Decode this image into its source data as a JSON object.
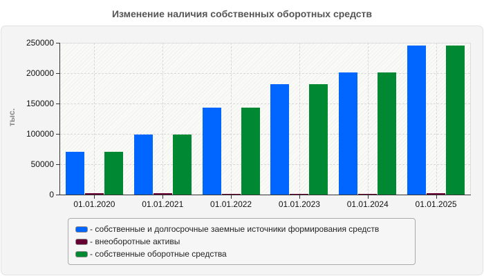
{
  "chart_data": {
    "type": "bar",
    "title": "Изменение наличия собственных оборотных средств",
    "xlabel": "",
    "ylabel": "тыс.",
    "ylim": [
      0,
      250000
    ],
    "yticks": [
      "0",
      "50000",
      "100000",
      "150000",
      "200000",
      "250000"
    ],
    "categories": [
      "01.01.2020",
      "01.01.2021",
      "01.01.2022",
      "01.01.2023",
      "01.01.2024",
      "01.01.2025"
    ],
    "series": [
      {
        "name": "собственные и долгосрочные заемные источники формирования средств",
        "color": "#0066ff",
        "values": [
          70500,
          99000,
          143000,
          182000,
          201000,
          245500
        ]
      },
      {
        "name": "внеоборотные активы",
        "color": "#660033",
        "values": [
          2600,
          2600,
          1500,
          1500,
          1500,
          2600
        ]
      },
      {
        "name": "собственные оборотные средства",
        "color": "#008833",
        "values": [
          70500,
          99000,
          143000,
          182000,
          201000,
          245500
        ]
      }
    ],
    "grid": true,
    "legend_position": "bottom"
  },
  "legend": [
    {
      "label": "- собственные и долгосрочные заемные источники формирования средств"
    },
    {
      "label": "- внеоборотные активы"
    },
    {
      "label": "- собственные оборотные средства"
    }
  ]
}
